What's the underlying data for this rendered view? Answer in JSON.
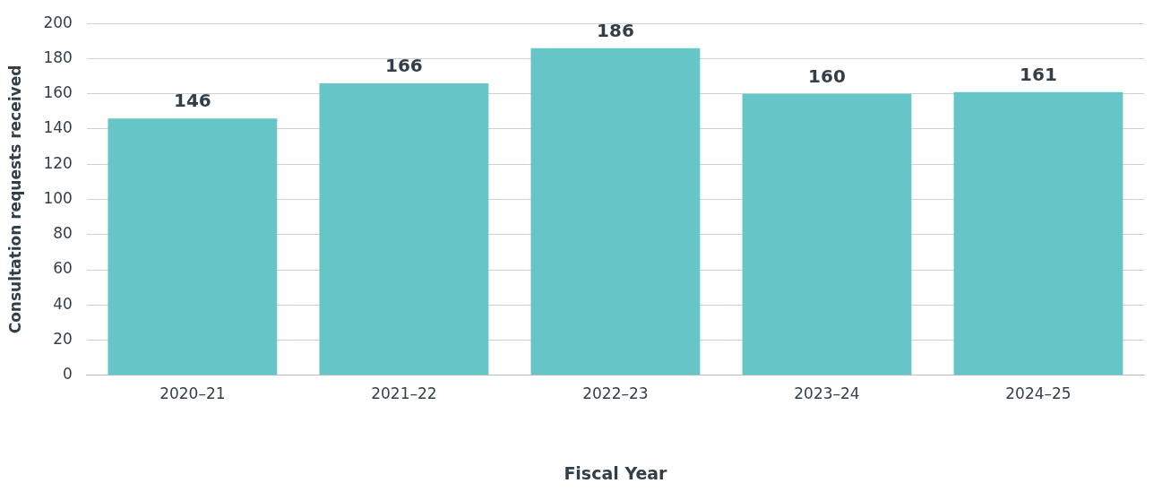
{
  "chart_data": {
    "type": "bar",
    "xlabel": "Fiscal Year",
    "ylabel": "Consultation requests received",
    "categories": [
      "2020–21",
      "2021–22",
      "2022–23",
      "2023–24",
      "2024–25"
    ],
    "values": [
      146,
      166,
      186,
      160,
      161
    ],
    "color": "#66c6c7",
    "ylim": [
      0,
      200
    ],
    "yticks": [
      0,
      20,
      40,
      60,
      80,
      100,
      120,
      140,
      160,
      180,
      200
    ],
    "grid": "y",
    "data_labels": true,
    "legend": false
  }
}
